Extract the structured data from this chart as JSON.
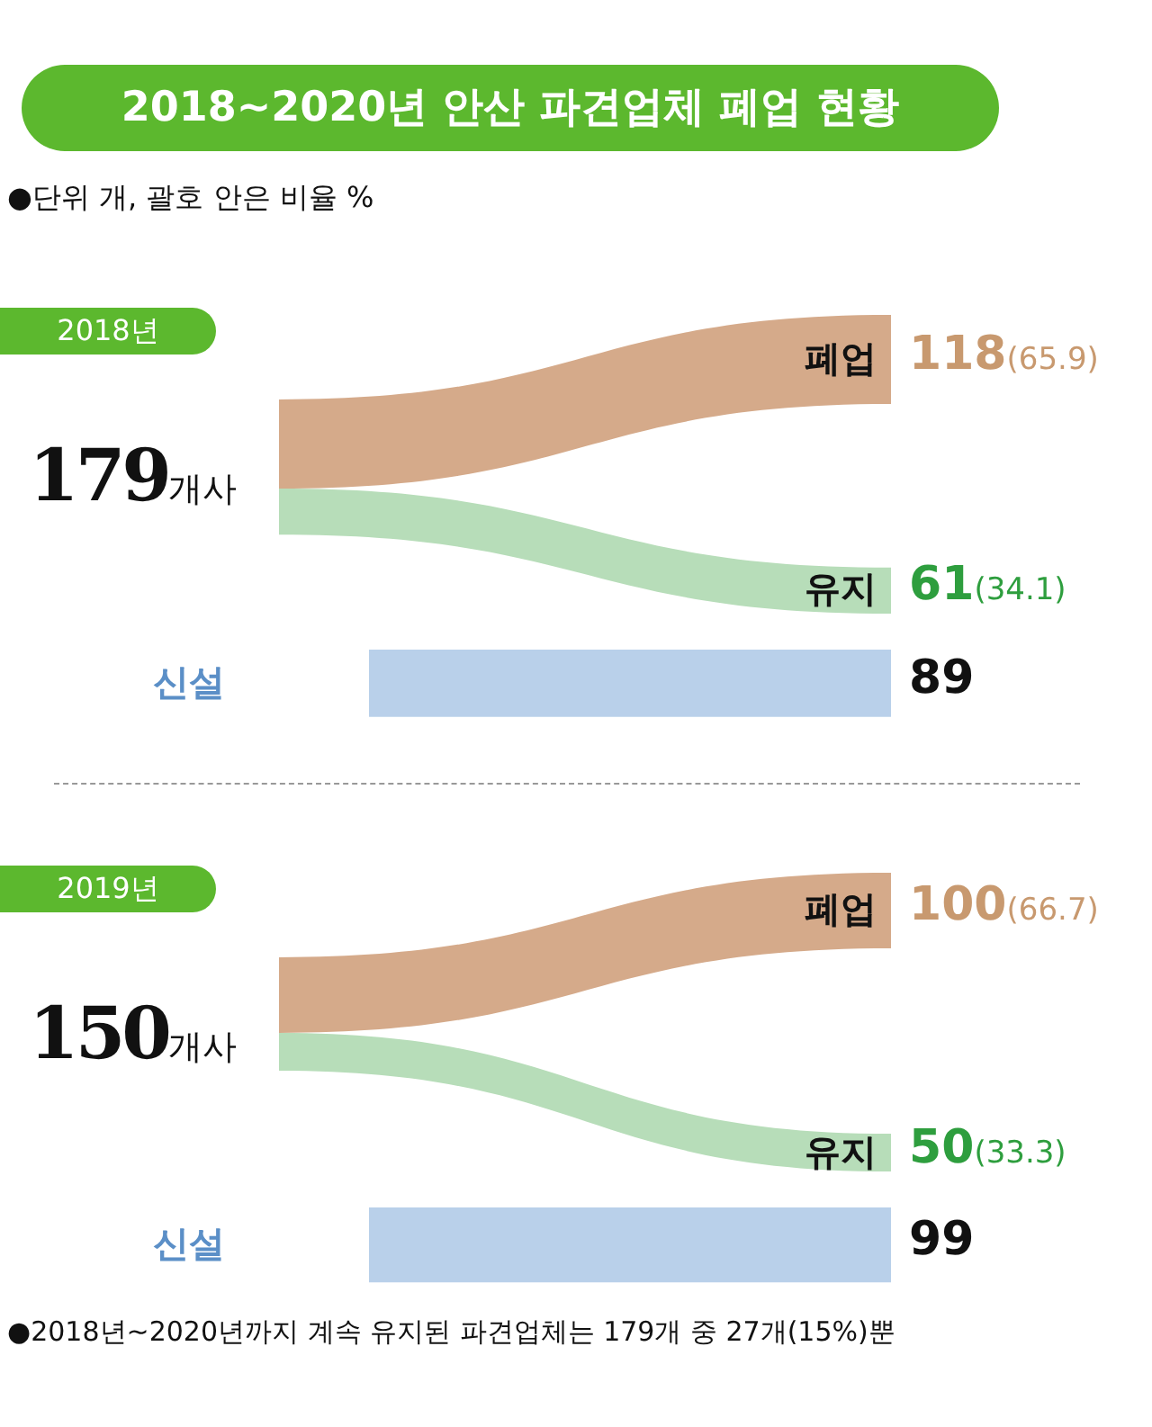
{
  "chart_data": [
    {
      "type": "other",
      "title": "2018~2020년 안산 파견업체 폐업 현황",
      "subtitle": "●단위 개, 괄호 안은 비율 %",
      "categories": [
        "폐업",
        "유지",
        "신설"
      ],
      "values": [
        118,
        61,
        89
      ],
      "value_labels": [
        "118(65.9)",
        "61(34.1)",
        "89"
      ],
      "colors": [
        "#d5aa8a",
        "#b7ddb9",
        "#b9d0ea"
      ],
      "annotations": [
        "2018년",
        "179개사"
      ]
    },
    {
      "type": "other",
      "categories": [
        "폐업",
        "유지",
        "신설"
      ],
      "values": [
        100,
        50,
        99
      ],
      "value_labels": [
        "100(66.7)",
        "50(33.3)",
        "99"
      ],
      "colors": [
        "#d5aa8a",
        "#b7ddb9",
        "#b9d0ea"
      ],
      "annotations": [
        "2019년",
        "150개사",
        "●2018년~2020년까지 계속 유지된 파견업체는 179개 중 27개(15%)뿐"
      ]
    }
  ]
}
